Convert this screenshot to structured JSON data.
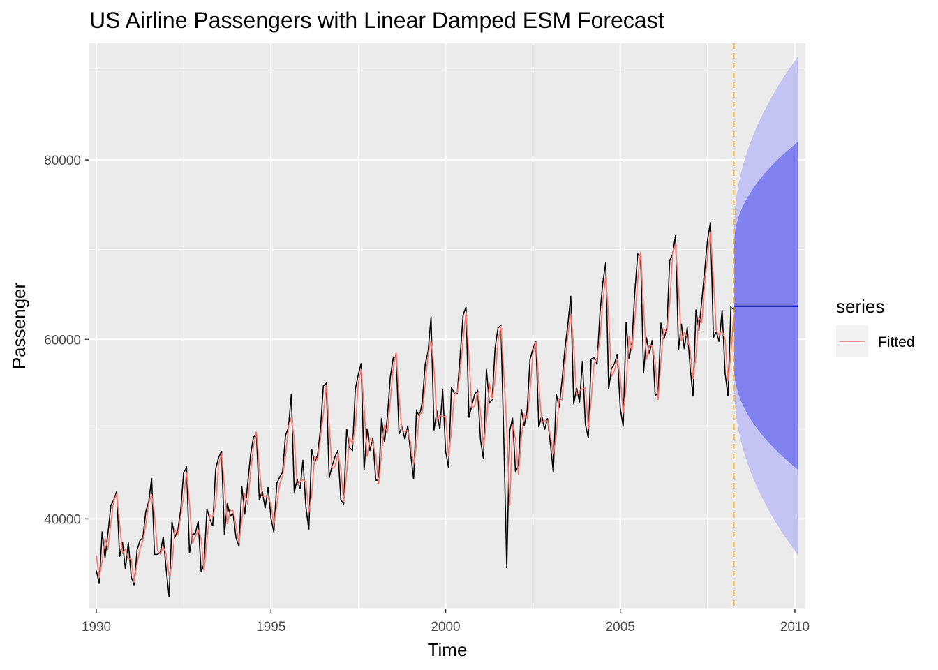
{
  "chart_data": {
    "type": "line",
    "title": "US Airline Passengers with Linear Damped ESM Forecast",
    "xlabel": "Time",
    "ylabel": "Passenger",
    "xlim": [
      1989.8,
      2010.3
    ],
    "ylim": [
      30000,
      93000
    ],
    "x_ticks": [
      1990,
      1995,
      2000,
      2005,
      2010
    ],
    "x_minor_ticks": [
      1992.5,
      1997.5,
      2002.5,
      2007.5
    ],
    "y_ticks": [
      40000,
      60000,
      80000
    ],
    "y_minor_ticks": [
      30000,
      50000,
      70000,
      90000
    ],
    "grid": true,
    "legend": {
      "title": "series",
      "position": "right",
      "entries": [
        "Fitted"
      ]
    },
    "colors": {
      "actual": "#000000",
      "fitted": "#F8766D",
      "forecast": "#0000CC",
      "pi80": "#8080EE",
      "pi95": "#C4C4F4",
      "vline": "#E6A21A",
      "panel": "#EBEBEB",
      "grid": "#FFFFFF"
    },
    "start": {
      "year": 1990,
      "month": 1
    },
    "monthly_pattern": [
      0.885,
      0.855,
      1.01,
      0.975,
      0.995,
      1.085,
      1.13,
      1.155,
      0.935,
      0.975,
      0.95,
      0.985
    ],
    "trend_knots": [
      [
        1990.0,
        38000
      ],
      [
        1991.0,
        37500
      ],
      [
        1992.0,
        38200
      ],
      [
        1993.0,
        40000
      ],
      [
        1994.0,
        42500
      ],
      [
        1995.0,
        44500
      ],
      [
        1996.0,
        46500
      ],
      [
        1997.0,
        48500
      ],
      [
        1998.0,
        50500
      ],
      [
        1999.0,
        52000
      ],
      [
        2000.0,
        54000
      ],
      [
        2001.0,
        55500
      ],
      [
        2002.0,
        52000
      ],
      [
        2003.0,
        53000
      ],
      [
        2004.0,
        57500
      ],
      [
        2005.0,
        59500
      ],
      [
        2006.0,
        61500
      ],
      [
        2007.0,
        63000
      ],
      [
        2008.25,
        63500
      ]
    ],
    "shock": {
      "time": 2001.75,
      "value": 34500
    },
    "forecast": {
      "start": 2008.25,
      "end": 2010.083,
      "point": 63700,
      "pi80": {
        "start": [
          57000,
          70500
        ],
        "end": [
          45500,
          82000
        ]
      },
      "pi95": {
        "start": [
          55000,
          72000
        ],
        "end": [
          36000,
          91500
        ]
      }
    },
    "vline_x": 2008.25
  }
}
